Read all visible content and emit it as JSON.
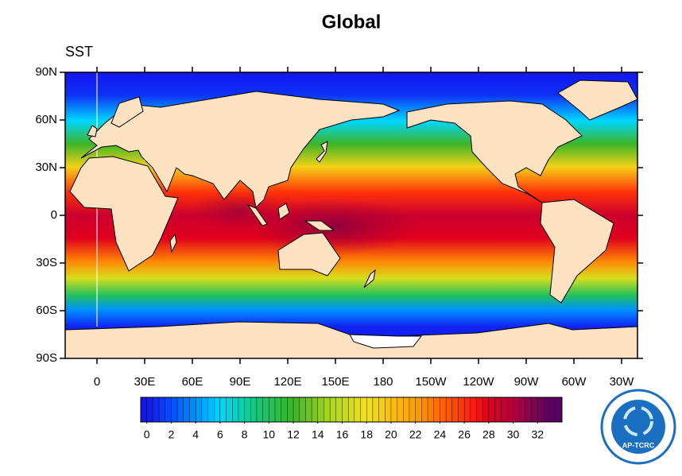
{
  "map": {
    "title": "Global",
    "field_label": "SST",
    "xlim": [
      -20,
      340
    ],
    "ylim": [
      -90,
      90
    ],
    "xticks": [
      0,
      {
        "value": 30,
        "label": "30E"
      },
      {
        "value": 60,
        "label": "60E"
      },
      {
        "value": 90,
        "label": "90E"
      },
      {
        "value": 120,
        "label": "120E"
      },
      {
        "value": 150,
        "label": "150E"
      },
      180,
      {
        "value": 210,
        "label": "150W"
      },
      {
        "value": 240,
        "label": "120W"
      },
      {
        "value": 270,
        "label": "90W"
      },
      {
        "value": 300,
        "label": "60W"
      },
      {
        "value": 330,
        "label": "30W"
      }
    ],
    "yticks": [
      {
        "value": 90,
        "label": "90N"
      },
      {
        "value": 60,
        "label": "60N"
      },
      {
        "value": 30,
        "label": "30N"
      },
      0,
      {
        "value": -30,
        "label": "30S"
      },
      {
        "value": -60,
        "label": "60S"
      },
      {
        "value": -90,
        "label": "90S"
      }
    ],
    "colorbar": {
      "range": [
        -0.5,
        34
      ],
      "ticks": [
        0,
        2,
        4,
        6,
        8,
        10,
        12,
        14,
        16,
        18,
        20,
        22,
        24,
        26,
        28,
        30,
        32
      ]
    },
    "logo": "AP-TCRC"
  }
}
